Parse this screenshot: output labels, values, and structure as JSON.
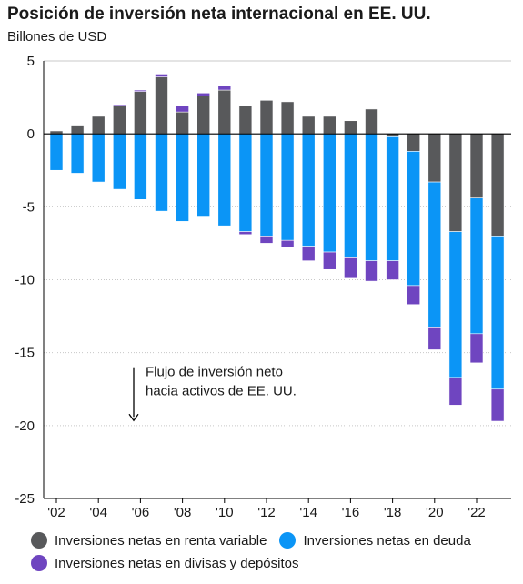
{
  "title": "Posición de inversión neta internacional en EE. UU.",
  "subtitle": "Billones de USD",
  "annotation": {
    "line1": "Flujo de inversión neto",
    "line2": "hacia activos de EE. UU."
  },
  "colors": {
    "equity": "#58595b",
    "debt": "#0b95f6",
    "currency": "#6f45c0",
    "axis": "#000000",
    "grid": "#c8c8c8"
  },
  "chart_data": {
    "type": "bar",
    "stacked": true,
    "years": [
      2002,
      2003,
      2004,
      2005,
      2006,
      2007,
      2008,
      2009,
      2010,
      2011,
      2012,
      2013,
      2014,
      2015,
      2016,
      2017,
      2018,
      2019,
      2020,
      2021,
      2022,
      2023
    ],
    "x_tick_labels": [
      "'02",
      "'04",
      "'06",
      "'08",
      "'10",
      "'12",
      "'14",
      "'16",
      "'18",
      "'20",
      "'22"
    ],
    "x_tick_years": [
      2002,
      2004,
      2006,
      2008,
      2010,
      2012,
      2014,
      2016,
      2018,
      2020,
      2022
    ],
    "y_ticks": [
      5,
      0,
      -5,
      -10,
      -15,
      -20,
      -25
    ],
    "ylim": [
      -25,
      5
    ],
    "grid": "horizontal, at 5, 0 (solid) and -5 (dashed/dotted light)",
    "series": [
      {
        "name": "Inversiones netas en renta variable",
        "color_key": "equity",
        "values": [
          0.2,
          0.6,
          1.2,
          1.9,
          2.9,
          3.9,
          1.5,
          2.6,
          3.0,
          1.9,
          2.3,
          2.2,
          1.2,
          1.2,
          0.9,
          1.7,
          -0.2,
          -1.2,
          -3.3,
          -6.7,
          -4.4,
          -7.0
        ]
      },
      {
        "name": "Inversiones netas en deuda",
        "color_key": "debt",
        "values": [
          -2.5,
          -2.7,
          -3.3,
          -3.8,
          -4.5,
          -5.3,
          -6.0,
          -5.7,
          -6.3,
          -6.7,
          -7.0,
          -7.3,
          -7.7,
          -8.1,
          -8.5,
          -8.7,
          -8.5,
          -9.2,
          -10.0,
          -10.0,
          -9.3,
          -10.5
        ]
      },
      {
        "name": "Inversiones netas en divisas y depósitos",
        "color_key": "currency",
        "values": [
          0.0,
          0.0,
          0.0,
          0.1,
          0.1,
          0.2,
          0.4,
          0.2,
          0.3,
          -0.2,
          -0.5,
          -0.5,
          -1.0,
          -1.2,
          -1.4,
          -1.4,
          -1.3,
          -1.3,
          -1.5,
          -1.9,
          -2.0,
          -2.2
        ]
      }
    ],
    "legend_position": "bottom"
  }
}
